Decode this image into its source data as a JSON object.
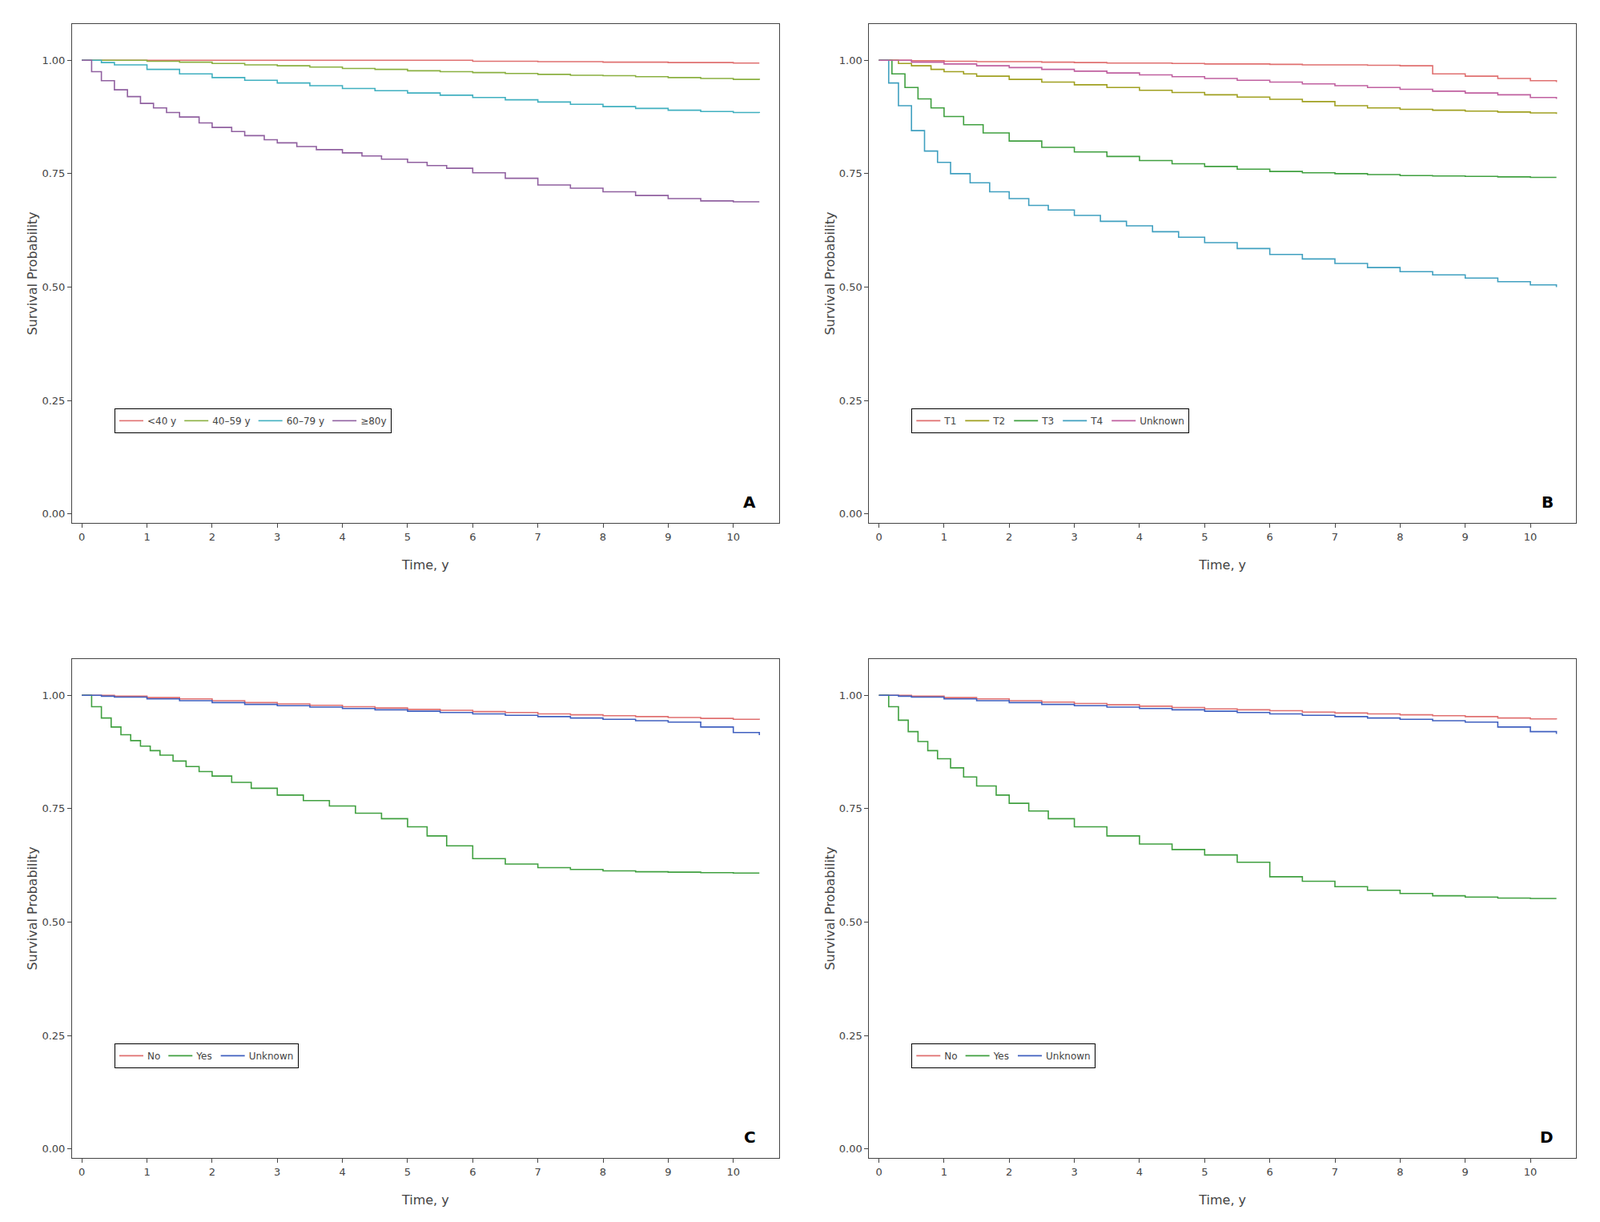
{
  "chart_data": [
    {
      "type": "step",
      "xlabel": "Time, y",
      "ylabel": "Survival Probability",
      "xlim": [
        -0.15,
        10.7
      ],
      "ylim": [
        -0.02,
        1.08
      ],
      "xticks": [
        0,
        1,
        2,
        3,
        4,
        5,
        6,
        7,
        8,
        9,
        10
      ],
      "yticks": [
        {
          "value": 0.0,
          "label": "0.00"
        },
        0.25,
        {
          "value": 0.5,
          "label": "0.50"
        },
        0.75,
        {
          "value": 1.0,
          "label": "1.00"
        }
      ],
      "grid": false,
      "legend": "lower left",
      "annotations": [
        "A"
      ],
      "series": [
        {
          "name": "<40 y",
          "color": "#e07070",
          "x": [
            0,
            0.5,
            1,
            2,
            3,
            4,
            5,
            5.5,
            6,
            7,
            8,
            9,
            10,
            10.4
          ],
          "values": [
            1.0,
            1.0,
            1.0,
            1.0,
            1.0,
            1.0,
            1.0,
            1.0,
            0.998,
            0.997,
            0.996,
            0.995,
            0.994,
            0.994
          ]
        },
        {
          "name": "40–59 y",
          "color": "#8ab040",
          "x": [
            0,
            0.5,
            1,
            1.5,
            2,
            2.5,
            3,
            3.5,
            4,
            4.5,
            5,
            5.5,
            6,
            6.5,
            7,
            7.5,
            8,
            8.5,
            9,
            9.5,
            10,
            10.4
          ],
          "values": [
            1.0,
            1.0,
            0.998,
            0.996,
            0.993,
            0.99,
            0.988,
            0.985,
            0.982,
            0.98,
            0.977,
            0.975,
            0.973,
            0.971,
            0.969,
            0.967,
            0.966,
            0.964,
            0.962,
            0.96,
            0.958,
            0.957
          ]
        },
        {
          "name": "60–79 y",
          "color": "#40b0c0",
          "x": [
            0,
            0.3,
            0.5,
            1,
            1.5,
            2,
            2.5,
            3,
            3.5,
            4,
            4.5,
            5,
            5.5,
            6,
            6.5,
            7,
            7.5,
            8,
            8.5,
            9,
            9.5,
            10,
            10.4
          ],
          "values": [
            1.0,
            0.995,
            0.99,
            0.98,
            0.97,
            0.962,
            0.956,
            0.95,
            0.944,
            0.938,
            0.933,
            0.928,
            0.923,
            0.918,
            0.913,
            0.908,
            0.903,
            0.898,
            0.894,
            0.89,
            0.887,
            0.885,
            0.884
          ]
        },
        {
          "name": "≥80y",
          "color": "#9060a0",
          "x": [
            0,
            0.15,
            0.3,
            0.5,
            0.7,
            0.9,
            1.1,
            1.3,
            1.5,
            1.8,
            2.0,
            2.3,
            2.5,
            2.8,
            3.0,
            3.3,
            3.6,
            4.0,
            4.3,
            4.6,
            5.0,
            5.3,
            5.6,
            6.0,
            6.5,
            7.0,
            7.5,
            8.0,
            8.5,
            9.0,
            9.5,
            10.0,
            10.4
          ],
          "values": [
            1.0,
            0.975,
            0.955,
            0.935,
            0.92,
            0.905,
            0.895,
            0.885,
            0.875,
            0.862,
            0.852,
            0.843,
            0.834,
            0.825,
            0.818,
            0.81,
            0.803,
            0.796,
            0.789,
            0.782,
            0.775,
            0.768,
            0.762,
            0.752,
            0.74,
            0.725,
            0.718,
            0.71,
            0.702,
            0.695,
            0.69,
            0.688,
            0.688
          ]
        }
      ]
    },
    {
      "type": "step",
      "xlabel": "Time, y",
      "ylabel": "Survival Probability",
      "xlim": [
        -0.15,
        10.7
      ],
      "ylim": [
        -0.02,
        1.08
      ],
      "xticks": [
        0,
        1,
        2,
        3,
        4,
        5,
        6,
        7,
        8,
        9,
        10
      ],
      "yticks": [
        {
          "value": 0.0,
          "label": "0.00"
        },
        0.25,
        {
          "value": 0.5,
          "label": "0.50"
        },
        0.75,
        {
          "value": 1.0,
          "label": "1.00"
        }
      ],
      "grid": false,
      "legend": "lower left",
      "annotations": [
        "B"
      ],
      "series": [
        {
          "name": "T1",
          "color": "#e07070",
          "x": [
            0,
            0.5,
            1,
            1.5,
            2,
            2.5,
            3,
            3.5,
            4,
            4.5,
            5,
            5.5,
            6,
            6.5,
            7,
            7.5,
            8,
            8.5,
            9,
            9.5,
            10,
            10.4
          ],
          "values": [
            1.0,
            0.999,
            0.998,
            0.997,
            0.997,
            0.996,
            0.995,
            0.994,
            0.994,
            0.993,
            0.992,
            0.992,
            0.991,
            0.99,
            0.99,
            0.989,
            0.988,
            0.97,
            0.965,
            0.96,
            0.955,
            0.952
          ]
        },
        {
          "name": "T2",
          "color": "#a0a020",
          "x": [
            0,
            0.3,
            0.5,
            0.8,
            1,
            1.3,
            1.5,
            2,
            2.5,
            3,
            3.5,
            4,
            4.5,
            5,
            5.5,
            6,
            6.5,
            7,
            7.5,
            8,
            8.5,
            9,
            9.5,
            10,
            10.4
          ],
          "values": [
            1.0,
            0.993,
            0.988,
            0.98,
            0.975,
            0.97,
            0.965,
            0.958,
            0.952,
            0.946,
            0.94,
            0.934,
            0.929,
            0.924,
            0.919,
            0.914,
            0.909,
            0.9,
            0.895,
            0.892,
            0.89,
            0.888,
            0.886,
            0.884,
            0.882
          ]
        },
        {
          "name": "T3",
          "color": "#40a040",
          "x": [
            0,
            0.2,
            0.4,
            0.6,
            0.8,
            1.0,
            1.3,
            1.6,
            2.0,
            2.5,
            3.0,
            3.5,
            4.0,
            4.5,
            5.0,
            5.5,
            6.0,
            6.5,
            7.0,
            7.5,
            8.0,
            8.5,
            9.0,
            9.5,
            10.0,
            10.4
          ],
          "values": [
            1.0,
            0.97,
            0.94,
            0.915,
            0.895,
            0.876,
            0.858,
            0.84,
            0.822,
            0.808,
            0.798,
            0.788,
            0.779,
            0.772,
            0.766,
            0.76,
            0.755,
            0.752,
            0.75,
            0.748,
            0.746,
            0.745,
            0.744,
            0.743,
            0.742,
            0.742
          ]
        },
        {
          "name": "T4",
          "color": "#40a0c0",
          "x": [
            0,
            0.15,
            0.3,
            0.5,
            0.7,
            0.9,
            1.1,
            1.4,
            1.7,
            2.0,
            2.3,
            2.6,
            3.0,
            3.4,
            3.8,
            4.2,
            4.6,
            5.0,
            5.5,
            6.0,
            6.5,
            7.0,
            7.5,
            8.0,
            8.5,
            9.0,
            9.5,
            10.0,
            10.4
          ],
          "values": [
            1.0,
            0.95,
            0.9,
            0.845,
            0.8,
            0.775,
            0.75,
            0.73,
            0.71,
            0.695,
            0.68,
            0.67,
            0.658,
            0.645,
            0.635,
            0.622,
            0.61,
            0.598,
            0.585,
            0.572,
            0.562,
            0.552,
            0.543,
            0.534,
            0.527,
            0.52,
            0.512,
            0.505,
            0.5
          ]
        },
        {
          "name": "Unknown",
          "color": "#c060a0",
          "x": [
            0,
            0.5,
            1,
            1.5,
            2,
            2.5,
            3,
            3.5,
            4,
            4.5,
            5,
            5.5,
            6,
            6.5,
            7,
            7.5,
            8,
            8.5,
            9,
            9.5,
            10,
            10.4
          ],
          "values": [
            1.0,
            0.996,
            0.992,
            0.988,
            0.984,
            0.98,
            0.976,
            0.972,
            0.968,
            0.964,
            0.96,
            0.956,
            0.952,
            0.948,
            0.944,
            0.94,
            0.936,
            0.932,
            0.928,
            0.924,
            0.918,
            0.915
          ]
        }
      ]
    },
    {
      "type": "step",
      "xlabel": "Time, y",
      "ylabel": "Survival Probability",
      "xlim": [
        -0.15,
        10.7
      ],
      "ylim": [
        -0.02,
        1.08
      ],
      "xticks": [
        0,
        1,
        2,
        3,
        4,
        5,
        6,
        7,
        8,
        9,
        10
      ],
      "yticks": [
        {
          "value": 0.0,
          "label": "0.00"
        },
        0.25,
        {
          "value": 0.5,
          "label": "0.50"
        },
        0.75,
        {
          "value": 1.0,
          "label": "1.00"
        }
      ],
      "grid": false,
      "legend": "lower left",
      "annotations": [
        "C"
      ],
      "series": [
        {
          "name": "No",
          "color": "#e07070",
          "x": [
            0,
            0.3,
            0.5,
            1,
            1.5,
            2,
            2.5,
            3,
            3.5,
            4,
            4.5,
            5,
            5.5,
            6,
            6.5,
            7,
            7.5,
            8,
            8.5,
            9,
            9.5,
            10,
            10.4
          ],
          "values": [
            1.0,
            1.0,
            0.998,
            0.995,
            0.992,
            0.988,
            0.984,
            0.981,
            0.978,
            0.975,
            0.972,
            0.969,
            0.967,
            0.964,
            0.962,
            0.959,
            0.957,
            0.955,
            0.953,
            0.951,
            0.949,
            0.947,
            0.946
          ]
        },
        {
          "name": "Yes",
          "color": "#40a040",
          "x": [
            0,
            0.15,
            0.3,
            0.45,
            0.6,
            0.75,
            0.9,
            1.05,
            1.2,
            1.4,
            1.6,
            1.8,
            2.0,
            2.3,
            2.6,
            3.0,
            3.4,
            3.8,
            4.2,
            4.6,
            5.0,
            5.3,
            5.6,
            6.0,
            6.5,
            7.0,
            7.5,
            8.0,
            8.5,
            9.0,
            9.5,
            10.0,
            10.4
          ],
          "values": [
            1.0,
            0.975,
            0.95,
            0.93,
            0.913,
            0.9,
            0.888,
            0.878,
            0.868,
            0.855,
            0.843,
            0.832,
            0.822,
            0.808,
            0.795,
            0.78,
            0.768,
            0.756,
            0.74,
            0.728,
            0.71,
            0.69,
            0.668,
            0.64,
            0.628,
            0.62,
            0.616,
            0.613,
            0.611,
            0.61,
            0.609,
            0.608,
            0.608
          ]
        },
        {
          "name": "Unknown",
          "color": "#4060c0",
          "x": [
            0,
            0.3,
            0.5,
            1,
            1.5,
            2,
            2.5,
            3,
            3.5,
            4,
            4.5,
            5,
            5.5,
            6,
            6.5,
            7,
            7.5,
            8,
            8.5,
            9,
            9.5,
            10,
            10.4
          ],
          "values": [
            1.0,
            0.998,
            0.996,
            0.992,
            0.988,
            0.984,
            0.98,
            0.977,
            0.974,
            0.971,
            0.968,
            0.965,
            0.962,
            0.959,
            0.956,
            0.953,
            0.95,
            0.947,
            0.944,
            0.941,
            0.93,
            0.918,
            0.912
          ]
        }
      ]
    },
    {
      "type": "step",
      "xlabel": "Time, y",
      "ylabel": "Survival Probability",
      "xlim": [
        -0.15,
        10.7
      ],
      "ylim": [
        -0.02,
        1.08
      ],
      "xticks": [
        0,
        1,
        2,
        3,
        4,
        5,
        6,
        7,
        8,
        9,
        10
      ],
      "yticks": [
        {
          "value": 0.0,
          "label": "0.00"
        },
        0.25,
        {
          "value": 0.5,
          "label": "0.50"
        },
        0.75,
        {
          "value": 1.0,
          "label": "1.00"
        }
      ],
      "grid": false,
      "legend": "lower left",
      "annotations": [
        "D"
      ],
      "series": [
        {
          "name": "No",
          "color": "#e07070",
          "x": [
            0,
            0.3,
            0.5,
            1,
            1.5,
            2,
            2.5,
            3,
            3.5,
            4,
            4.5,
            5,
            5.5,
            6,
            6.5,
            7,
            7.5,
            8,
            8.5,
            9,
            9.5,
            10,
            10.4
          ],
          "values": [
            1.0,
            1.0,
            0.998,
            0.995,
            0.992,
            0.988,
            0.985,
            0.982,
            0.979,
            0.976,
            0.973,
            0.97,
            0.968,
            0.966,
            0.963,
            0.961,
            0.959,
            0.957,
            0.955,
            0.953,
            0.95,
            0.948,
            0.947
          ]
        },
        {
          "name": "Yes",
          "color": "#40a040",
          "x": [
            0,
            0.15,
            0.3,
            0.45,
            0.6,
            0.75,
            0.9,
            1.1,
            1.3,
            1.5,
            1.8,
            2.0,
            2.3,
            2.6,
            3.0,
            3.5,
            4.0,
            4.5,
            5.0,
            5.5,
            6.0,
            6.5,
            7.0,
            7.5,
            8.0,
            8.5,
            9.0,
            9.5,
            10.0,
            10.4
          ],
          "values": [
            1.0,
            0.975,
            0.945,
            0.92,
            0.898,
            0.878,
            0.86,
            0.84,
            0.82,
            0.8,
            0.78,
            0.762,
            0.745,
            0.728,
            0.71,
            0.69,
            0.672,
            0.66,
            0.648,
            0.632,
            0.6,
            0.59,
            0.578,
            0.57,
            0.563,
            0.558,
            0.555,
            0.553,
            0.552,
            0.552
          ]
        },
        {
          "name": "Unknown",
          "color": "#4060c0",
          "x": [
            0,
            0.3,
            0.5,
            1,
            1.5,
            2,
            2.5,
            3,
            3.5,
            4,
            4.5,
            5,
            5.5,
            6,
            6.5,
            7,
            7.5,
            8,
            8.5,
            9,
            9.5,
            10,
            10.4
          ],
          "values": [
            1.0,
            0.998,
            0.996,
            0.992,
            0.988,
            0.984,
            0.98,
            0.977,
            0.974,
            0.971,
            0.968,
            0.965,
            0.962,
            0.959,
            0.956,
            0.953,
            0.95,
            0.947,
            0.944,
            0.941,
            0.93,
            0.92,
            0.915
          ]
        }
      ]
    }
  ]
}
